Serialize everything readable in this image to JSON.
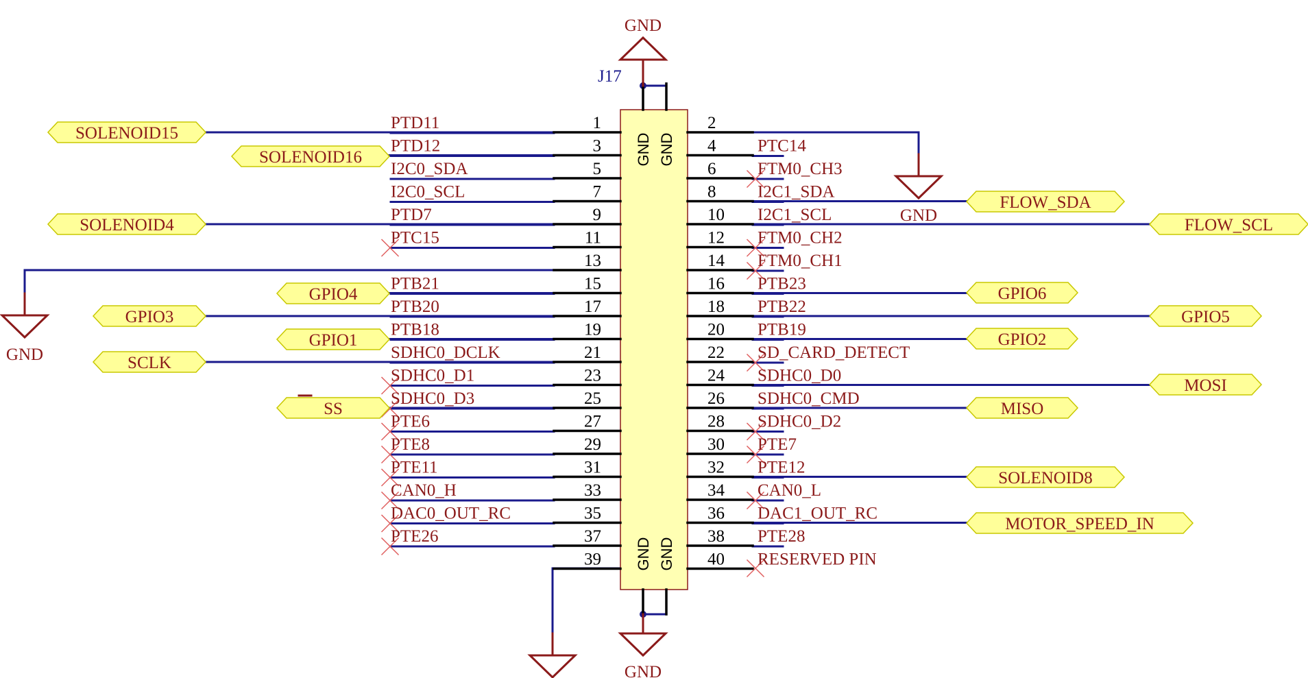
{
  "refdes": "J17",
  "pin_names": [
    "PTD11",
    "PTD12",
    "I2C0_SDA",
    "I2C0_SCL",
    "PTD7",
    "PTC15",
    "",
    "PTB21",
    "PTB20",
    "PTB18",
    "SDHC0_DCLK",
    "SDHC0_D1",
    "SDHC0_D3",
    "PTE6",
    "PTE8",
    "PTE11",
    "CAN0_H",
    "DAC0_OUT_RC",
    "PTE26",
    "",
    "",
    "PTC14",
    "FTM0_CH3",
    "I2C1_SDA",
    "I2C1_SCL",
    "FTM0_CH2",
    "FTM0_CH1",
    "PTB23",
    "PTB22",
    "PTB19",
    "SD_CARD_DETECT",
    "SDHC0_D0",
    "SDHC0_CMD",
    "SDHC0_D2",
    "PTE7",
    "PTE12",
    "CAN0_L",
    "DAC1_OUT_RC",
    "PTE28",
    "RESERVED PIN"
  ],
  "pin_numbers_left": [
    "1",
    "3",
    "5",
    "7",
    "9",
    "11",
    "13",
    "15",
    "17",
    "19",
    "21",
    "23",
    "25",
    "27",
    "29",
    "31",
    "33",
    "35",
    "37",
    "39"
  ],
  "pin_numbers_right": [
    "2",
    "4",
    "6",
    "8",
    "10",
    "12",
    "14",
    "16",
    "18",
    "20",
    "22",
    "24",
    "26",
    "28",
    "30",
    "32",
    "34",
    "36",
    "38",
    "40"
  ],
  "body_pin_text": [
    "GND",
    "GND",
    "GND",
    "GND"
  ],
  "power_symbols": [
    "GND",
    "GND",
    "GND",
    "GND",
    "GND"
  ],
  "net_labels": {
    "left": [
      "SOLENOID15",
      "SOLENOID16",
      "SOLENOID4",
      "GPIO4",
      "GPIO3",
      "GPIO1",
      "SCLK",
      "SS"
    ],
    "right": [
      "FLOW_SDA",
      "FLOW_SCL",
      "GPIO6",
      "GPIO5",
      "GPIO2",
      "MOSI",
      "MISO",
      "SOLENOID8",
      "MOTOR_SPEED_IN"
    ]
  },
  "colors": {
    "wire": "#1a1a8c",
    "pin": "#000000",
    "body_fill": "#ffffb3",
    "text_dark_red": "#8b1a1a",
    "reserved_red": "#ff2020",
    "port_fill": "#ffff99",
    "no_connect": "#e06060"
  }
}
